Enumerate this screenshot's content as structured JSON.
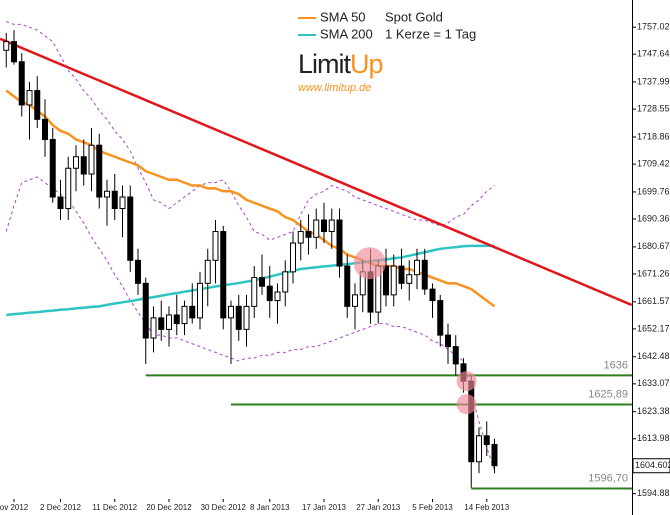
{
  "chart_data": {
    "type": "candlestick",
    "title": "Spot Gold",
    "subtitle": "1 Kerze = 1 Tag",
    "logo": {
      "brand": [
        "Limit",
        "Up"
      ],
      "url": "www.limitup.de"
    },
    "categories": [
      null,
      "ov 2012",
      null,
      null,
      null,
      null,
      null,
      "2 Dec 2012",
      null,
      null,
      null,
      null,
      null,
      null,
      "11 Dec 2012",
      null,
      null,
      null,
      null,
      null,
      null,
      "20 Dec 2012",
      null,
      null,
      null,
      null,
      null,
      null,
      "30 Dec 2012",
      null,
      null,
      null,
      null,
      null,
      "8 Jan 2013",
      null,
      null,
      null,
      null,
      null,
      null,
      "17 Jan 2013",
      null,
      null,
      null,
      null,
      null,
      null,
      "27 Jan 2013",
      null,
      null,
      null,
      null,
      null,
      null,
      "5 Feb 2013",
      null,
      null,
      null,
      null,
      null,
      null,
      "14 Feb 2013",
      null
    ],
    "open": [
      1749,
      1752,
      1745,
      1730,
      1735,
      1725,
      1718,
      1698,
      1694,
      1708,
      1712,
      1706,
      1716,
      1698,
      1700,
      1694,
      1698,
      1676,
      1668,
      1649,
      1656,
      1652,
      1657,
      1654,
      1660,
      1656,
      1668,
      1676,
      1686,
      1656,
      1660,
      1652,
      1660,
      1670,
      1667,
      1662,
      1665,
      1672,
      1682,
      1686,
      1684,
      1690,
      1686,
      1690,
      1674,
      1660,
      1664,
      1672,
      1658,
      1674,
      1664,
      1674,
      1668,
      1671,
      1676,
      1666,
      1662,
      1650,
      1646,
      1640,
      1634,
      1606,
      1615,
      1612
    ],
    "high": [
      1755,
      1756,
      1748,
      1738,
      1740,
      1732,
      1722,
      1704,
      1712,
      1716,
      1718,
      1722,
      1720,
      1704,
      1706,
      1702,
      1702,
      1680,
      1670,
      1660,
      1662,
      1660,
      1664,
      1662,
      1668,
      1672,
      1680,
      1690,
      1688,
      1662,
      1664,
      1664,
      1674,
      1678,
      1674,
      1668,
      1676,
      1686,
      1690,
      1692,
      1694,
      1696,
      1694,
      1694,
      1678,
      1668,
      1676,
      1680,
      1676,
      1680,
      1678,
      1680,
      1676,
      1680,
      1680,
      1668,
      1664,
      1654,
      1650,
      1642,
      1636,
      1618,
      1620,
      1614
    ],
    "low": [
      1743,
      1744,
      1726,
      1718,
      1722,
      1712,
      1696,
      1690,
      1690,
      1700,
      1702,
      1700,
      1694,
      1688,
      1690,
      1684,
      1672,
      1664,
      1640,
      1644,
      1648,
      1646,
      1650,
      1650,
      1654,
      1652,
      1660,
      1668,
      1652,
      1640,
      1648,
      1646,
      1656,
      1664,
      1656,
      1654,
      1660,
      1668,
      1676,
      1678,
      1680,
      1682,
      1680,
      1670,
      1656,
      1652,
      1658,
      1654,
      1654,
      1660,
      1660,
      1666,
      1662,
      1666,
      1664,
      1656,
      1646,
      1640,
      1636,
      1630,
      1597,
      1602,
      1608,
      1602
    ],
    "close": [
      1752,
      1745,
      1730,
      1735,
      1725,
      1718,
      1698,
      1694,
      1708,
      1712,
      1706,
      1716,
      1698,
      1700,
      1694,
      1698,
      1676,
      1668,
      1649,
      1656,
      1652,
      1657,
      1654,
      1660,
      1656,
      1668,
      1676,
      1686,
      1656,
      1660,
      1652,
      1660,
      1670,
      1667,
      1662,
      1665,
      1672,
      1682,
      1686,
      1684,
      1690,
      1686,
      1690,
      1674,
      1660,
      1664,
      1672,
      1658,
      1674,
      1664,
      1674,
      1668,
      1671,
      1676,
      1666,
      1662,
      1650,
      1646,
      1640,
      1634,
      1606,
      1615,
      1612,
      1604.602
    ],
    "candle_colors": {
      "up": "#ffffff",
      "down": "#000000",
      "edge": "#000000"
    },
    "series": [
      {
        "name": "SMA 50",
        "color": "#f7931e",
        "values": [
          1735,
          1733,
          1731,
          1730,
          1728,
          1726,
          1723,
          1721,
          1720,
          1718,
          1717,
          1716,
          1714,
          1713,
          1712,
          1711,
          1710,
          1709,
          1707,
          1706,
          1705,
          1704,
          1704,
          1703,
          1702,
          1702,
          1701,
          1701,
          1700,
          1700,
          1699,
          1697,
          1696,
          1695,
          1694,
          1693,
          1691,
          1690,
          1688,
          1686,
          1685,
          1683,
          1681,
          1680,
          1678,
          1677,
          1676,
          1675,
          1674,
          1674,
          1674,
          1673,
          1673,
          1672,
          1671,
          1670,
          1669,
          1668,
          1668,
          1667,
          1666,
          1664,
          1662,
          1660
        ]
      },
      {
        "name": "SMA 200",
        "color": "#2ec4c4",
        "values": [
          1657,
          1657.3,
          1657.5,
          1657.8,
          1658,
          1658.3,
          1658.5,
          1658.8,
          1659,
          1659.3,
          1659.5,
          1659.8,
          1660,
          1660.5,
          1661,
          1661.4,
          1661.8,
          1662.3,
          1662.8,
          1663.2,
          1663.7,
          1664.2,
          1664.6,
          1665.1,
          1665.5,
          1666,
          1666.4,
          1666.9,
          1667.3,
          1667.7,
          1668.1,
          1668.6,
          1669,
          1669.7,
          1670.3,
          1671,
          1671.7,
          1672.3,
          1673,
          1673.3,
          1673.6,
          1673.9,
          1674.1,
          1674.4,
          1674.7,
          1675,
          1675.3,
          1675.7,
          1676,
          1676.3,
          1676.7,
          1677,
          1677.6,
          1678.2,
          1678.8,
          1679.4,
          1680,
          1680.3,
          1680.6,
          1680.9,
          1681,
          1681,
          1681,
          1681
        ]
      },
      {
        "color": "#b040d0",
        "dashed": true,
        "values": [
          1759,
          1758,
          1758,
          1757,
          1756,
          1754,
          1752,
          1747,
          1742,
          1739,
          1735,
          1732,
          1728,
          1725,
          1721,
          1718,
          1714,
          1708,
          1703,
          1697,
          1696,
          1694,
          1696,
          1698,
          1700,
          1702,
          1703,
          1703,
          1704,
          1700,
          1695,
          1691,
          1686,
          1685,
          1683,
          1684,
          1685,
          1686,
          1692,
          1697,
          1699,
          1700,
          1702,
          1701,
          1700,
          1698,
          1697,
          1696,
          1695,
          1694,
          1693,
          1692,
          1691,
          1690,
          1690,
          1689,
          1688,
          1689,
          1691,
          1692,
          1695,
          1697,
          1700,
          1702
        ]
      },
      {
        "color": "#b040d0",
        "dashed": true,
        "values": [
          1686,
          1695,
          1703,
          1704,
          1705,
          1703,
          1701,
          1699,
          1697,
          1693,
          1689,
          1684,
          1680,
          1676,
          1671,
          1667,
          1662,
          1658,
          1654,
          1650,
          1650,
          1649,
          1649,
          1648,
          1647,
          1646,
          1645,
          1644,
          1643,
          1642,
          1641,
          1642,
          1642,
          1643,
          1643,
          1644,
          1644,
          1645,
          1645,
          1646,
          1646,
          1647,
          1648,
          1649,
          1650,
          1651,
          1652,
          1653,
          1654,
          1654,
          1653,
          1653,
          1652,
          1651,
          1650,
          1648,
          1647,
          1645,
          1643,
          1641,
          1630,
          1620,
          1611,
          1603
        ]
      }
    ],
    "trendline": {
      "color": "#e0161b",
      "start": [
        -0.8,
        1753
      ],
      "end": [
        80.7,
        1660.5
      ]
    },
    "levels": [
      {
        "value": 1636,
        "label": "1636",
        "start": 18
      },
      {
        "value": 1625.89,
        "label": "1625,89",
        "start": 29
      },
      {
        "value": 1596.7,
        "label": "1596,70",
        "start": 60
      }
    ],
    "level_color": "#2e7d1e",
    "highlights": [
      {
        "x": 46.9,
        "y": 1675
      },
      {
        "x": 59.4,
        "y": 1634
      },
      {
        "x": 59.4,
        "y": 1626
      }
    ],
    "highlight_color": "#f08c96",
    "ylim": [
      1592,
      1763
    ],
    "yticks": [
      1757.025,
      1747.645,
      1737.995,
      {
        "value": 1728.55,
        "label": "1728.550"
      },
      {
        "value": 1718.86,
        "label": "1718.860"
      },
      1709.425,
      1699.765,
      {
        "value": 1690.36,
        "label": "1690.360"
      },
      1680.675,
      1671.265,
      1661.575,
      {
        "value": 1652.17,
        "label": "1652.170"
      },
      1642.485,
      1633.075,
      1623.385,
      {
        "value": 1613.98,
        "label": "1613.980"
      },
      1594.885
    ]
  }
}
